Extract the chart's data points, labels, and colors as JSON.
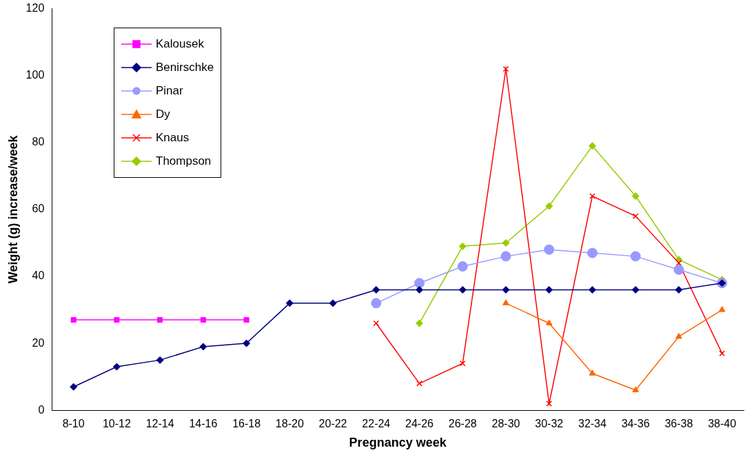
{
  "chart_data": {
    "type": "line",
    "xlabel": "Pregnancy week",
    "ylabel": "Weight (g) increase/week",
    "categories": [
      "8-10",
      "10-12",
      "12-14",
      "14-16",
      "16-18",
      "18-20",
      "20-22",
      "22-24",
      "24-26",
      "26-28",
      "28-30",
      "30-32",
      "32-34",
      "34-36",
      "36-38",
      "38-40"
    ],
    "series": [
      {
        "name": "Kalousek",
        "color": "#ff00ff",
        "marker": "square",
        "values": [
          27,
          27,
          27,
          27,
          27,
          null,
          null,
          null,
          null,
          null,
          null,
          null,
          null,
          null,
          null,
          null
        ]
      },
      {
        "name": "Benirschke",
        "color": "#000080",
        "marker": "diamond",
        "values": [
          7,
          13,
          15,
          19,
          20,
          32,
          32,
          36,
          36,
          36,
          36,
          36,
          36,
          36,
          36,
          38
        ]
      },
      {
        "name": "Pinar",
        "color": "#9999ff",
        "marker": "circle",
        "values": [
          null,
          null,
          null,
          null,
          null,
          null,
          null,
          32,
          38,
          43,
          46,
          48,
          47,
          46,
          42,
          38
        ]
      },
      {
        "name": "Dy",
        "color": "#ff6600",
        "marker": "triangle",
        "values": [
          null,
          null,
          null,
          null,
          null,
          null,
          null,
          null,
          null,
          null,
          32,
          26,
          11,
          6,
          22,
          30
        ]
      },
      {
        "name": "Knaus",
        "color": "#ff0000",
        "marker": "cross",
        "values": [
          null,
          null,
          null,
          null,
          null,
          null,
          null,
          26,
          8,
          14,
          102,
          2,
          64,
          58,
          44,
          17
        ]
      },
      {
        "name": "Thompson",
        "color": "#99cc00",
        "marker": "diamond",
        "values": [
          null,
          null,
          null,
          null,
          null,
          null,
          null,
          null,
          26,
          49,
          50,
          61,
          79,
          64,
          45,
          39
        ]
      }
    ],
    "ylim": [
      0,
      120
    ],
    "yticks": [
      0,
      20,
      40,
      60,
      80,
      100,
      120
    ],
    "grid": false,
    "legend": "top left"
  }
}
